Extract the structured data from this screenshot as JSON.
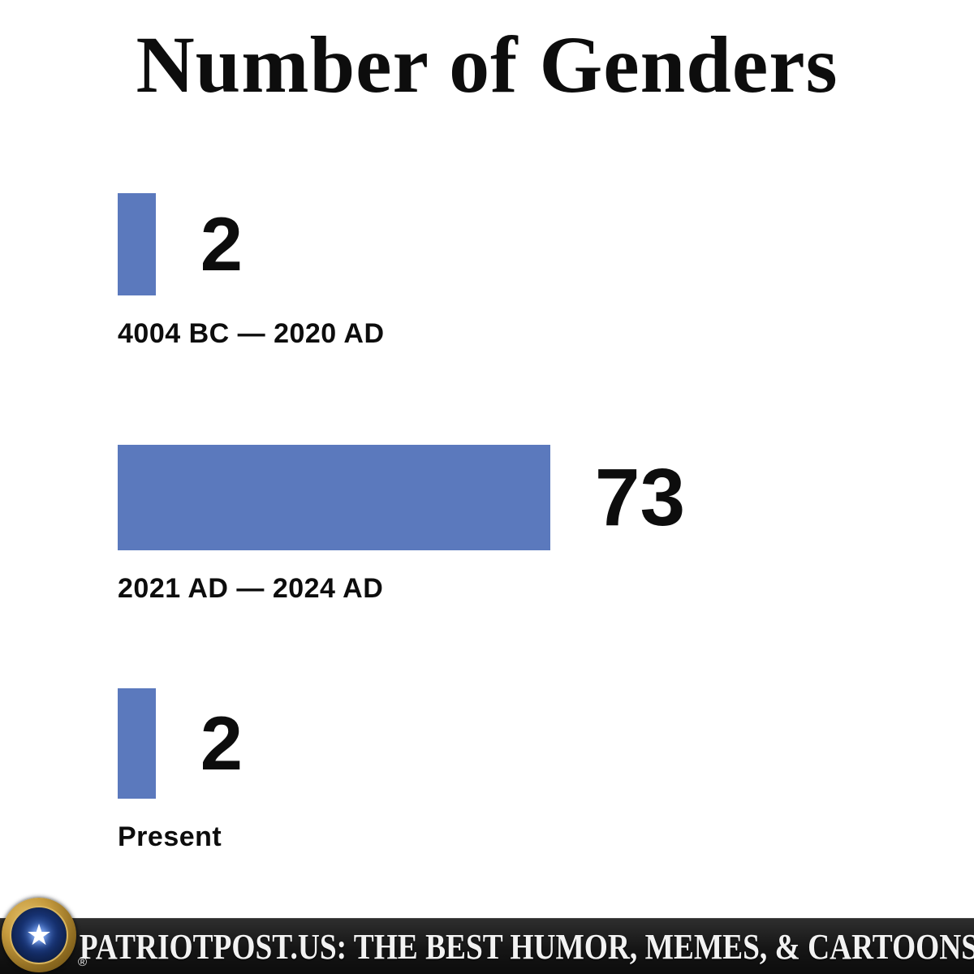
{
  "title": "Number of Genders",
  "chart_data": {
    "type": "bar",
    "orientation": "horizontal",
    "title": "Number of Genders",
    "categories": [
      "4004 BC — 2020 AD",
      "2021 AD — 2024 AD",
      "Present"
    ],
    "values": [
      2,
      73,
      2
    ],
    "bar_color": "#5b79bd",
    "grid": false,
    "legend": false,
    "items": [
      {
        "label": "4004 BC — 2020 AD",
        "value": "2",
        "width_pct": 4.6
      },
      {
        "label": "2021 AD — 2024 AD",
        "value": "73",
        "width_pct": 52.5
      },
      {
        "label": "Present",
        "value": "2",
        "width_pct": 4.6
      }
    ]
  },
  "footer": {
    "tagline": "PATRIOTPOST.US: THE BEST HUMOR, MEMES, & CARTOONS",
    "registered": "®",
    "seal_icon": "star-seal-icon",
    "star": "★"
  },
  "colors": {
    "bar": "#5b79bd",
    "footer_background": "#151515",
    "footer_text": "#f2f2f2"
  }
}
